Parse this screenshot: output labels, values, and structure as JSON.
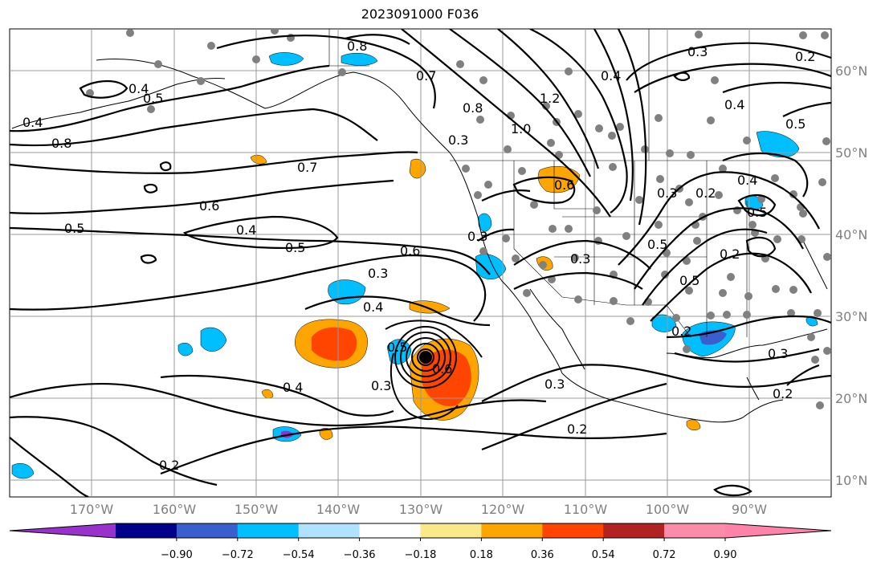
{
  "title": "2023091000 F036",
  "map": {
    "lat_labels": [
      "60°N",
      "50°N",
      "40°N",
      "30°N",
      "20°N",
      "10°N"
    ],
    "lon_labels": [
      "170°W",
      "160°W",
      "150°W",
      "140°W",
      "130°W",
      "120°W",
      "110°W",
      "100°W",
      "90°W"
    ],
    "contour_labels": [
      "0.8",
      "0.8",
      "0.4",
      "0.5",
      "0.7",
      "0.6",
      "0.5",
      "0.4",
      "0.5",
      "0.6",
      "0.3",
      "0.4",
      "0.5",
      "0.3",
      "0.6",
      "0.4",
      "0.2",
      "0.3",
      "0.2",
      "0.7",
      "0.8",
      "1.0",
      "1.2",
      "0.4",
      "0.3",
      "0.6",
      "0.3",
      "0.2",
      "0.4",
      "0.5",
      "0.5",
      "0.4",
      "0.3",
      "0.2",
      "0.2",
      "0.3",
      "0.2",
      "0.2",
      "0.5",
      "0.5",
      "0.3",
      "0.3",
      "0.4"
    ]
  },
  "colorbar": {
    "colors": [
      "#9932CC",
      "#00008B",
      "#3A5FCD",
      "#00BFFF",
      "#B0E2FF",
      "#FFFFFF",
      "#FAE98A",
      "#FFA500",
      "#FF4500",
      "#B22222",
      "#FA8CAA",
      "#FF82AB"
    ],
    "tick_labels": [
      "−0.90",
      "−0.72",
      "−0.54",
      "−0.36",
      "−0.18",
      "0.18",
      "0.36",
      "0.54",
      "0.72",
      "0.90"
    ]
  }
}
